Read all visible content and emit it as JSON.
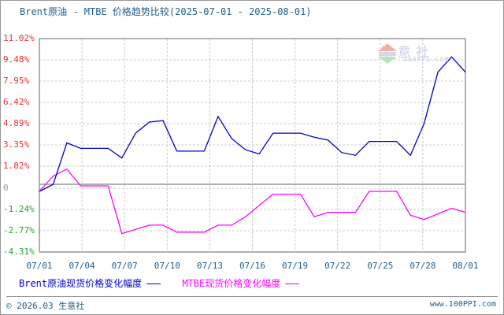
{
  "title": "Brent原油 - MTBE 价格趋势比较(2025-07-01 - 2025-08-01)",
  "watermark": {
    "text": "生意社",
    "sub": "100PPI.COM"
  },
  "y_axis": {
    "ticks": [
      "11.02%",
      "9.48%",
      "7.95%",
      "6.42%",
      "4.89%",
      "3.35%",
      "1.82%",
      "0",
      "-1.24%",
      "-2.77%",
      "-4.31%"
    ]
  },
  "x_axis": {
    "ticks": [
      "07/01",
      "07/04",
      "07/07",
      "07/10",
      "07/13",
      "07/16",
      "07/19",
      "07/22",
      "07/25",
      "07/28",
      "08/01"
    ]
  },
  "legend": {
    "series1": "Brent原油现货价格变化幅度",
    "series2": "MTBE现货价格变化幅度"
  },
  "footer": {
    "copyright": "© 2026.03 生意社",
    "site": "www.100PPI.com"
  },
  "colors": {
    "series1": "#0000cc",
    "series2": "#ff00ff",
    "positive_label": "#e8312f",
    "negative_label": "#22a32a"
  },
  "chart_data": {
    "type": "line",
    "title": "Brent原油 - MTBE 价格趋势比较(2025-07-01 - 2025-08-01)",
    "xlabel": "",
    "ylabel": "",
    "ylim": [
      -4.31,
      11.02
    ],
    "grid": true,
    "legend_position": "bottom",
    "x": [
      "07/01",
      "07/02",
      "07/03",
      "07/04",
      "07/05",
      "07/06",
      "07/07",
      "07/08",
      "07/09",
      "07/10",
      "07/11",
      "07/12",
      "07/13",
      "07/14",
      "07/15",
      "07/16",
      "07/17",
      "07/18",
      "07/19",
      "07/20",
      "07/21",
      "07/22",
      "07/23",
      "07/24",
      "07/25",
      "07/26",
      "07/27",
      "07/28",
      "07/29",
      "07/30",
      "07/31",
      "08/01"
    ],
    "series": [
      {
        "name": "Brent原油现货价格变化幅度",
        "values": [
          0.0,
          0.5,
          3.5,
          3.1,
          3.1,
          3.1,
          2.4,
          4.2,
          5.0,
          5.1,
          2.9,
          2.9,
          2.9,
          5.4,
          3.8,
          3.0,
          2.7,
          4.2,
          4.2,
          4.2,
          3.9,
          3.7,
          2.8,
          2.6,
          3.6,
          3.6,
          3.6,
          2.6,
          4.9,
          8.6,
          9.7,
          8.6
        ]
      },
      {
        "name": "MTBE现货价格变化幅度",
        "values": [
          0.0,
          1.1,
          1.6,
          0.4,
          0.4,
          0.4,
          -3.0,
          -2.7,
          -2.4,
          -2.4,
          -2.9,
          -2.9,
          -2.9,
          -2.4,
          -2.4,
          -1.8,
          -1.0,
          -0.2,
          -0.2,
          -0.2,
          -1.8,
          -1.5,
          -1.5,
          -1.5,
          0.0,
          0.0,
          0.0,
          -1.7,
          -2.0,
          -1.6,
          -1.2,
          -1.5
        ]
      }
    ]
  }
}
